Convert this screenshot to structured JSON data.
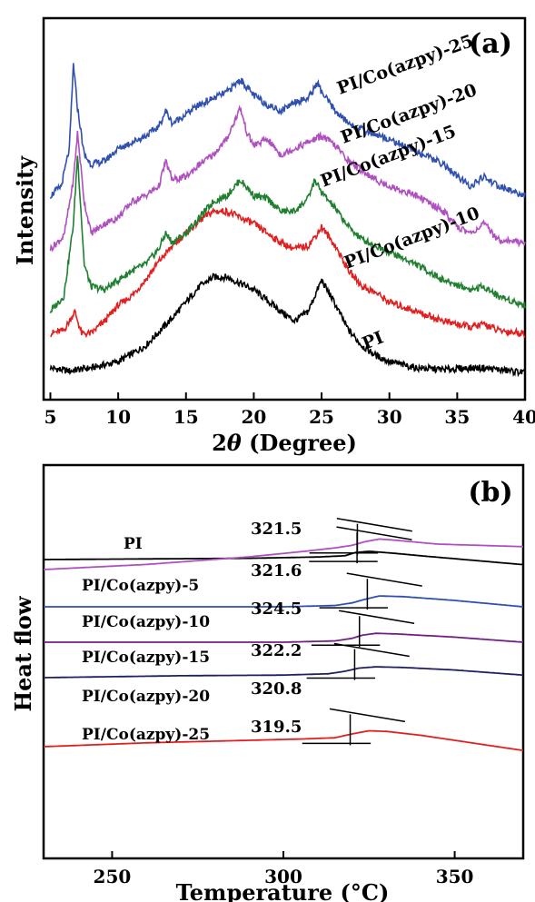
{
  "chart_data": [
    {
      "type": "line",
      "panel_label": "(a)",
      "xlabel_prefix": "2",
      "xlabel_theta": "θ",
      "xlabel_suffix": " (Degree)",
      "ylabel": "Intensity",
      "xlim": [
        4.5,
        40
      ],
      "x_ticks": [
        5,
        10,
        15,
        20,
        25,
        30,
        35,
        40
      ],
      "y_tick_labels": false,
      "series": [
        {
          "name": "PI",
          "color": "#000000",
          "x": [
            5,
            6.5,
            7,
            8,
            10,
            12,
            14,
            15,
            16,
            17,
            18,
            19,
            20,
            22,
            23,
            24,
            24.7,
            25,
            25.8,
            27,
            28,
            29,
            30,
            32,
            34,
            36,
            37,
            38,
            40
          ],
          "y": [
            0.02,
            0.01,
            0.015,
            0.02,
            0.04,
            0.09,
            0.18,
            0.23,
            0.28,
            0.31,
            0.31,
            0.29,
            0.27,
            0.2,
            0.17,
            0.2,
            0.27,
            0.3,
            0.24,
            0.14,
            0.09,
            0.06,
            0.04,
            0.02,
            0.015,
            0.02,
            0.02,
            0.015,
            0.005
          ]
        },
        {
          "name": "PI/Co(azpy)-10",
          "color": "#e02020",
          "x": [
            5,
            6,
            6.8,
            7.3,
            8,
            9,
            10,
            11,
            12,
            13,
            14,
            15,
            16,
            17,
            18,
            19,
            20,
            21,
            22,
            23,
            24,
            24.7,
            25,
            26,
            27,
            28,
            29,
            30,
            32,
            34,
            36,
            37,
            38,
            40
          ],
          "y": [
            0.13,
            0.14,
            0.2,
            0.13,
            0.13,
            0.17,
            0.22,
            0.25,
            0.3,
            0.36,
            0.41,
            0.45,
            0.49,
            0.52,
            0.52,
            0.5,
            0.48,
            0.45,
            0.42,
            0.4,
            0.41,
            0.45,
            0.47,
            0.41,
            0.33,
            0.28,
            0.26,
            0.23,
            0.2,
            0.17,
            0.15,
            0.16,
            0.14,
            0.13
          ]
        },
        {
          "name": "PI/Co(azpy)-15",
          "color": "#208030",
          "x": [
            5,
            6,
            6.7,
            7,
            7.5,
            8,
            9,
            10,
            11,
            12,
            13,
            13.5,
            14,
            15,
            16,
            17,
            18,
            19,
            20,
            21,
            22,
            23,
            24,
            24.5,
            25,
            26,
            27,
            28,
            29,
            30,
            32,
            34,
            36,
            37,
            38,
            40
          ],
          "y": [
            0.2,
            0.25,
            0.48,
            0.7,
            0.35,
            0.28,
            0.27,
            0.3,
            0.33,
            0.35,
            0.4,
            0.45,
            0.42,
            0.45,
            0.5,
            0.55,
            0.57,
            0.62,
            0.57,
            0.56,
            0.52,
            0.52,
            0.56,
            0.62,
            0.58,
            0.53,
            0.47,
            0.43,
            0.41,
            0.39,
            0.35,
            0.3,
            0.27,
            0.28,
            0.25,
            0.22
          ]
        },
        {
          "name": "PI/Co(azpy)-20",
          "color": "#b050c0",
          "x": [
            5,
            6,
            6.7,
            7,
            7.5,
            8,
            9,
            10,
            11,
            12,
            13,
            13.5,
            14,
            15,
            16,
            17,
            18,
            19,
            19.5,
            20,
            21,
            22,
            23,
            24,
            25,
            26,
            27,
            28,
            29,
            30,
            32,
            34,
            35,
            36,
            37,
            38,
            40
          ],
          "y": [
            0.4,
            0.44,
            0.62,
            0.77,
            0.55,
            0.45,
            0.48,
            0.5,
            0.55,
            0.57,
            0.6,
            0.68,
            0.62,
            0.63,
            0.67,
            0.7,
            0.75,
            0.85,
            0.77,
            0.73,
            0.75,
            0.7,
            0.72,
            0.74,
            0.76,
            0.73,
            0.68,
            0.65,
            0.62,
            0.6,
            0.57,
            0.52,
            0.47,
            0.45,
            0.48,
            0.43,
            0.42
          ]
        },
        {
          "name": "PI/Co(azpy)-25",
          "color": "#3050b0",
          "x": [
            5,
            5.8,
            6.4,
            6.7,
            7,
            7.5,
            8,
            9,
            10,
            11,
            12,
            13,
            13.5,
            14,
            15,
            16,
            17,
            18,
            19,
            20,
            21,
            22,
            23,
            24,
            24.7,
            25,
            26,
            27,
            28,
            30,
            32,
            33,
            34,
            35,
            36,
            37,
            38,
            40
          ],
          "y": [
            0.57,
            0.6,
            0.72,
            0.99,
            0.85,
            0.7,
            0.67,
            0.68,
            0.72,
            0.74,
            0.76,
            0.79,
            0.84,
            0.8,
            0.83,
            0.86,
            0.88,
            0.9,
            0.94,
            0.89,
            0.86,
            0.84,
            0.87,
            0.88,
            0.93,
            0.9,
            0.84,
            0.8,
            0.78,
            0.75,
            0.71,
            0.69,
            0.67,
            0.63,
            0.6,
            0.63,
            0.6,
            0.57
          ]
        }
      ],
      "series_labels_text": [
        "PI",
        "PI/Co(azpy)-10",
        "PI/Co(azpy)-15",
        "PI/Co(azpy)-20",
        "PI/Co(azpy)-25"
      ]
    },
    {
      "type": "line",
      "panel_label": "(b)",
      "xlabel": "Temperature (°C)",
      "ylabel": "Heat flow",
      "xlim": [
        230,
        370
      ],
      "x_ticks": [
        250,
        300,
        350
      ],
      "y_tick_labels": false,
      "series": [
        {
          "name": "PI",
          "color": "#000000",
          "tg_label": "321.5",
          "tg": 321.5,
          "x": [
            230,
            290,
            310,
            318,
            321,
            325,
            332,
            340,
            370
          ],
          "y": [
            0.82,
            0.83,
            0.84,
            0.85,
            0.875,
            0.885,
            0.87,
            0.85,
            0.78
          ]
        },
        {
          "name": "PI/Co(azpy)-5",
          "color": "#b050c0",
          "tg_label": "321.6",
          "tg": 321.6,
          "x": [
            230,
            260,
            290,
            305,
            315,
            320,
            324,
            328,
            333,
            345,
            370
          ],
          "y": [
            0.56,
            0.6,
            0.66,
            0.7,
            0.73,
            0.75,
            0.78,
            0.8,
            0.79,
            0.76,
            0.74
          ]
        },
        {
          "name": "PI/Co(azpy)-10",
          "color": "#3050b0",
          "tg_label": "324.5",
          "tg": 324.5,
          "x": [
            230,
            270,
            300,
            315,
            320,
            324,
            328,
            335,
            350,
            370
          ],
          "y": [
            0.5,
            0.5,
            0.5,
            0.51,
            0.53,
            0.56,
            0.585,
            0.58,
            0.55,
            0.5
          ]
        },
        {
          "name": "PI/Co(azpy)-15",
          "color": "#702080",
          "tg_label": "322.2",
          "tg": 322.2,
          "x": [
            230,
            270,
            300,
            315,
            320,
            323,
            327,
            333,
            350,
            370
          ],
          "y": [
            0.39,
            0.39,
            0.39,
            0.4,
            0.42,
            0.445,
            0.46,
            0.455,
            0.43,
            0.39
          ]
        },
        {
          "name": "PI/Co(azpy)-20",
          "color": "#202060",
          "tg_label": "320.8",
          "tg": 320.8,
          "x": [
            230,
            270,
            300,
            313,
            318,
            322,
            327,
            335,
            350,
            370
          ],
          "y": [
            0.26,
            0.275,
            0.28,
            0.29,
            0.31,
            0.335,
            0.345,
            0.34,
            0.32,
            0.28
          ]
        },
        {
          "name": "PI/Co(azpy)-25",
          "color": "#e02020",
          "tg_label": "319.5",
          "tg": 319.5,
          "x": [
            230,
            260,
            290,
            305,
            315,
            320,
            325,
            330,
            340,
            355,
            370
          ],
          "y": [
            0.11,
            0.14,
            0.16,
            0.17,
            0.18,
            0.21,
            0.235,
            0.23,
            0.2,
            0.14,
            0.08
          ]
        }
      ],
      "series_labels_text": [
        "PI",
        "PI/Co(azpy)-5",
        "PI/Co(azpy)-10",
        "PI/Co(azpy)-15",
        "PI/Co(azpy)-20",
        "PI/Co(azpy)-25"
      ]
    }
  ]
}
